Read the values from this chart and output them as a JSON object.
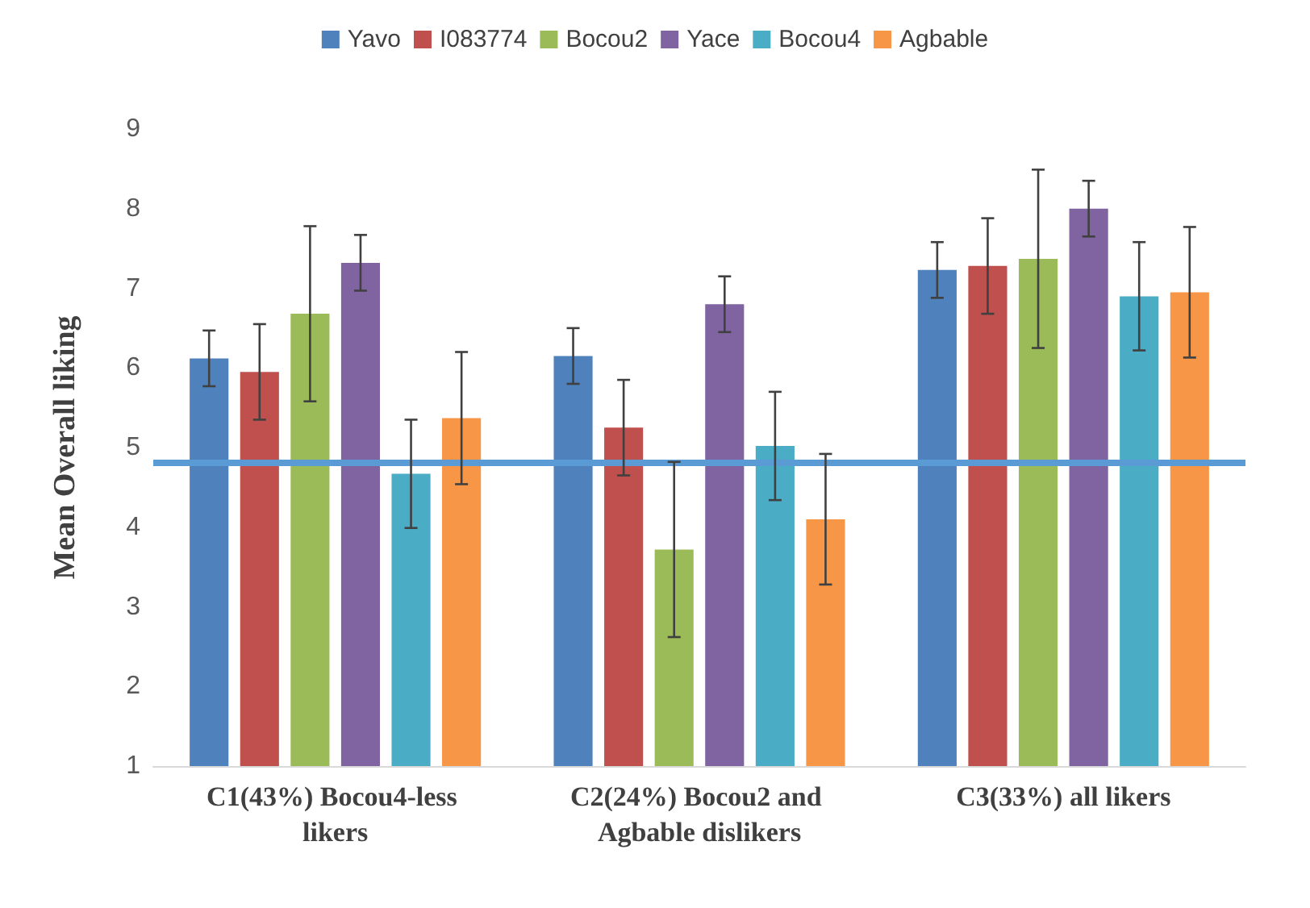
{
  "chart_data": {
    "type": "bar",
    "ylabel": "Mean Overall liking",
    "categories": [
      "C1(43%) Bocou4-less likers",
      "C2(24%) Bocou2 and Agbable dislikers",
      "C3(33%) all likers"
    ],
    "series": [
      {
        "name": "Yavo",
        "color": "#4f81bd",
        "values": [
          6.12,
          6.15,
          7.23
        ],
        "errors": [
          0.35,
          0.35,
          0.35
        ]
      },
      {
        "name": "I083774",
        "color": "#c0504d",
        "values": [
          5.95,
          5.25,
          7.28
        ],
        "errors": [
          0.6,
          0.6,
          0.6
        ]
      },
      {
        "name": "Bocou2",
        "color": "#9bbb59",
        "values": [
          6.68,
          3.72,
          7.37
        ],
        "errors": [
          1.1,
          1.1,
          1.12
        ]
      },
      {
        "name": "Yace",
        "color": "#8064a2",
        "values": [
          7.32,
          6.8,
          8.0
        ],
        "errors": [
          0.35,
          0.35,
          0.35
        ]
      },
      {
        "name": "Bocou4",
        "color": "#4bacc6",
        "values": [
          4.67,
          5.02,
          6.9
        ],
        "errors": [
          0.68,
          0.68,
          0.68
        ]
      },
      {
        "name": "Agbable",
        "color": "#f79646",
        "values": [
          5.37,
          4.1,
          6.95
        ],
        "errors": [
          0.83,
          0.82,
          0.82
        ]
      }
    ],
    "ylim": [
      1,
      9
    ],
    "yticks": [
      1,
      2,
      3,
      4,
      5,
      6,
      7,
      8,
      9
    ],
    "grid": false,
    "legend": "top",
    "ref_lines": [
      {
        "axis": "y",
        "value": 4.82,
        "color": "#5b9bd5"
      }
    ]
  }
}
